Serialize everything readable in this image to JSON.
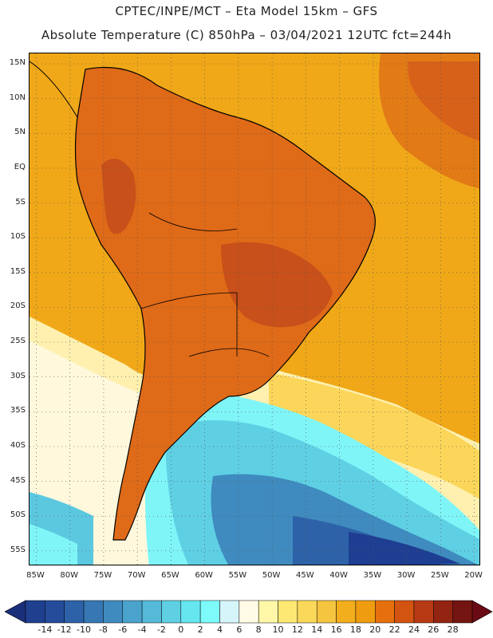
{
  "header": {
    "line1": "CPTEC/INPE/MCT –  Eta Model 15km – GFS",
    "line2": "Absolute Temperature (C) 850hPa – 03/04/2021 12UTC fct=244h"
  },
  "map": {
    "lat_labels": [
      "15N",
      "10N",
      "5N",
      "EQ",
      "5S",
      "10S",
      "15S",
      "20S",
      "25S",
      "30S",
      "35S",
      "40S",
      "45S",
      "50S",
      "55S"
    ],
    "lon_labels": [
      "85W",
      "80W",
      "75W",
      "70W",
      "65W",
      "60W",
      "55W",
      "50W",
      "45W",
      "40W",
      "35W",
      "30W",
      "25W",
      "20W"
    ]
  },
  "colorbar": {
    "labels": [
      "-14",
      "-12",
      "-10",
      "-8",
      "-6",
      "-4",
      "-2",
      "0",
      "2",
      "4",
      "6",
      "8",
      "10",
      "12",
      "14",
      "16",
      "18",
      "20",
      "22",
      "24",
      "26",
      "28"
    ],
    "colors": [
      "#1f3f8f",
      "#254c9b",
      "#2d62a8",
      "#3677b4",
      "#3f8bbf",
      "#4aa3cc",
      "#55b9d8",
      "#5fd0e4",
      "#66e6ee",
      "#7dfbfa",
      "#d6f5fb",
      "#fffbe6",
      "#fff7a8",
      "#fde873",
      "#fad85a",
      "#f5c540",
      "#f2ae1c",
      "#ef9c10",
      "#e5700d",
      "#d35310",
      "#b73a14",
      "#932412",
      "#741511"
    ],
    "min_arrow_color": "#1a2f7a",
    "max_arrow_color": "#6a0a14"
  },
  "legend_palette_note_colors": {
    "ocean_warm": "#f0a818",
    "land_hot": "#df6a18",
    "land_hotter": "#c8501a",
    "mid_pale": "#fff5cc",
    "cold_cyan": "#7ff5f8",
    "cold_teal": "#5cc8e0",
    "cold_blue": "#2e7cc0",
    "cold_navy": "#1e3e92",
    "coast": "#000000"
  }
}
